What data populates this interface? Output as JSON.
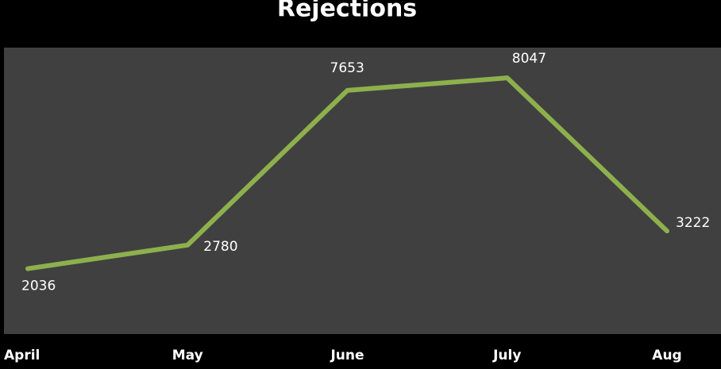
{
  "chart_data": {
    "type": "line",
    "title": "Rejections",
    "categories": [
      "April",
      "May",
      "June",
      "July",
      "Aug"
    ],
    "series": [
      {
        "name": "Rejections",
        "color": "#8db04d",
        "values": [
          2036,
          2780,
          7653,
          8047,
          3222
        ]
      }
    ],
    "ylim": [
      0,
      9000
    ]
  }
}
